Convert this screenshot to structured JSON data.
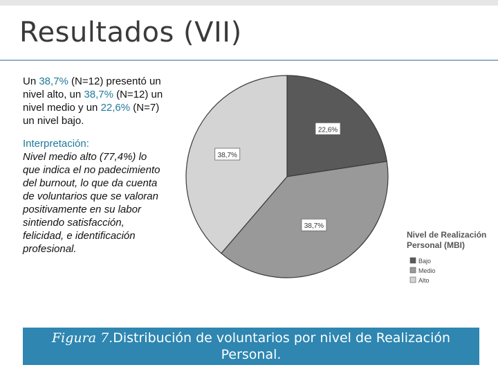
{
  "slide": {
    "title": "Resultados (VII)"
  },
  "summary": {
    "part1": "Un ",
    "pct1": "38,7%",
    "part2": " (N=12) presentó un nivel alto, un ",
    "pct2": "38,7%",
    "part3": " (N=12) un nivel medio y un ",
    "pct3": "22,6%",
    "part4": " (N=7) un nivel bajo."
  },
  "interpretation": {
    "label": "Interpretación:",
    "body": "Nivel medio alto (77,4%) lo que indica el no padecimiento del burnout, lo que da cuenta de voluntarios que se valoran positivamente en su labor sintiendo satisfacción, felicidad, e identificación profesional."
  },
  "caption": {
    "figure_label": "Figura  7.",
    "text": "Distribución de voluntarios por nivel de Realización Personal."
  },
  "chart_data": {
    "type": "pie",
    "legend_title": "Nivel de Realización Personal (MBI)",
    "legend_position": "right",
    "slices": [
      {
        "label": "Bajo",
        "value": 22.6,
        "data_label": "22,6%",
        "color": "#595959"
      },
      {
        "label": "Medio",
        "value": 38.7,
        "data_label": "38,7%",
        "color": "#999999"
      },
      {
        "label": "Alto",
        "value": 38.7,
        "data_label": "38,7%",
        "color": "#d4d4d4"
      }
    ]
  }
}
